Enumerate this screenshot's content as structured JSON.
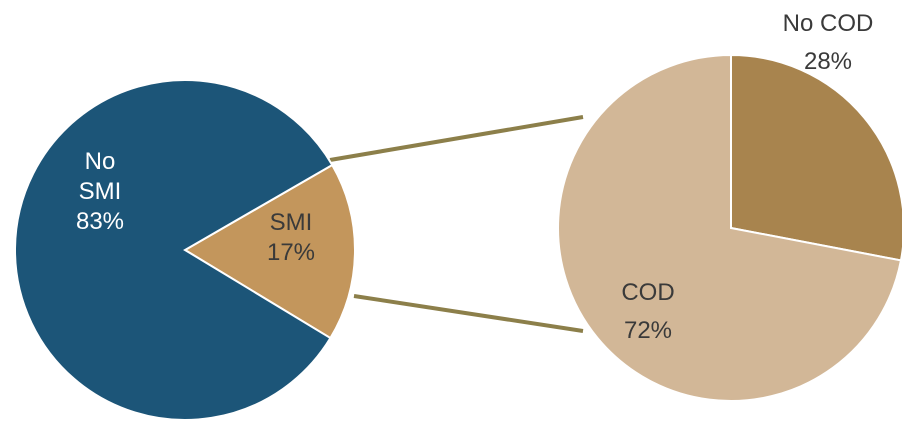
{
  "chart_data": [
    {
      "type": "pie",
      "slices": [
        {
          "name": "SMI",
          "value": 17,
          "label_lines": [
            "SMI",
            "17%"
          ],
          "color": "#C3965C"
        },
        {
          "name": "No SMI",
          "value": 83,
          "label_lines": [
            "No",
            "SMI",
            "83%"
          ],
          "color": "#1C5578"
        }
      ],
      "title": "",
      "legend": "none"
    },
    {
      "type": "pie",
      "slices": [
        {
          "name": "No COD",
          "value": 28,
          "label_lines": [
            "No COD",
            "28%"
          ],
          "color": "#A8844E"
        },
        {
          "name": "COD",
          "value": 72,
          "label_lines": [
            "COD",
            "72%"
          ],
          "color": "#D2B797"
        }
      ],
      "title": "",
      "legend": "none"
    }
  ],
  "connector_color": "#8C7F4A"
}
